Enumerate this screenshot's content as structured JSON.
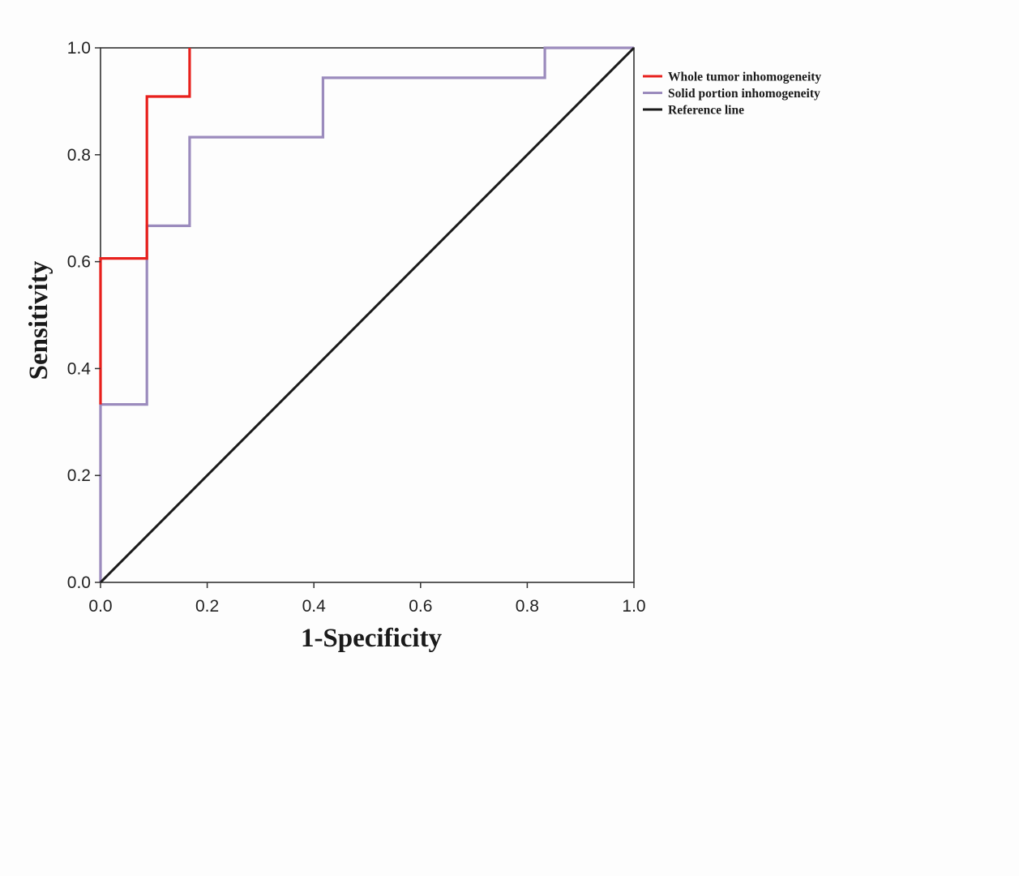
{
  "chart_data": {
    "type": "line",
    "xlabel": "1-Specificity",
    "ylabel": "Sensitivity",
    "xlim": [
      0,
      1
    ],
    "ylim": [
      0,
      1
    ],
    "xticks": [
      "0.0",
      "0.2",
      "0.4",
      "0.6",
      "0.8",
      "1.0"
    ],
    "yticks": [
      "0.0",
      "0.2",
      "0.4",
      "0.6",
      "0.8",
      "1.0"
    ],
    "grid": false,
    "legend_position": "top-right outside",
    "series": [
      {
        "name": "Whole tumor inhomogeneity",
        "color": "#e8201c",
        "x": [
          0,
          0,
          0.087,
          0.087,
          0.167,
          0.167
        ],
        "y": [
          0.333,
          0.606,
          0.606,
          0.909,
          0.909,
          1.0
        ]
      },
      {
        "name": "Solid portion inhomogeneity",
        "color": "#9b8bbd",
        "x": [
          0,
          0,
          0.087,
          0.087,
          0.167,
          0.167,
          0.417,
          0.417,
          0.833,
          0.833,
          1.0
        ],
        "y": [
          0,
          0.333,
          0.333,
          0.667,
          0.667,
          0.833,
          0.833,
          0.944,
          0.944,
          1.0,
          1.0
        ]
      },
      {
        "name": "Reference line",
        "color": "#1a1a1a",
        "x": [
          0,
          1
        ],
        "y": [
          0,
          1
        ]
      }
    ]
  }
}
